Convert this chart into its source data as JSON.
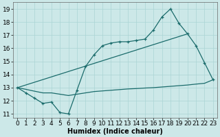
{
  "title": "",
  "xlabel": "Humidex (Indice chaleur)",
  "background_color": "#cce8e8",
  "grid_color": "#aad4d4",
  "line_color": "#1a6b6b",
  "xlim": [
    -0.5,
    23.5
  ],
  "ylim": [
    10.7,
    19.5
  ],
  "xticks": [
    0,
    1,
    2,
    3,
    4,
    5,
    6,
    7,
    8,
    9,
    10,
    11,
    12,
    13,
    14,
    15,
    16,
    17,
    18,
    19,
    20,
    21,
    22,
    23
  ],
  "yticks": [
    11,
    12,
    13,
    14,
    15,
    16,
    17,
    18,
    19
  ],
  "line1_x": [
    0,
    1,
    2,
    3,
    4,
    5,
    6,
    7,
    8,
    9,
    10,
    11,
    12,
    13,
    14,
    15,
    16,
    17,
    18,
    19,
    20,
    21,
    22,
    23
  ],
  "line1_y": [
    13.0,
    12.6,
    12.2,
    11.8,
    11.9,
    11.1,
    11.0,
    12.8,
    14.6,
    15.5,
    16.2,
    16.4,
    16.5,
    16.5,
    16.6,
    16.7,
    17.4,
    18.4,
    19.0,
    17.9,
    17.1,
    16.2,
    14.9,
    13.6
  ],
  "line2_x": [
    0,
    20
  ],
  "line2_y": [
    13.0,
    17.1
  ],
  "line3_x": [
    0,
    1,
    2,
    3,
    4,
    5,
    6,
    7,
    8,
    9,
    10,
    11,
    12,
    13,
    14,
    15,
    16,
    17,
    18,
    19,
    20,
    21,
    22,
    23
  ],
  "line3_y": [
    13.0,
    12.87,
    12.73,
    12.6,
    12.6,
    12.5,
    12.4,
    12.5,
    12.6,
    12.7,
    12.75,
    12.8,
    12.85,
    12.9,
    12.93,
    12.97,
    13.0,
    13.05,
    13.1,
    13.15,
    13.2,
    13.27,
    13.33,
    13.6
  ],
  "font_size": 7,
  "tick_font_size": 6.5
}
